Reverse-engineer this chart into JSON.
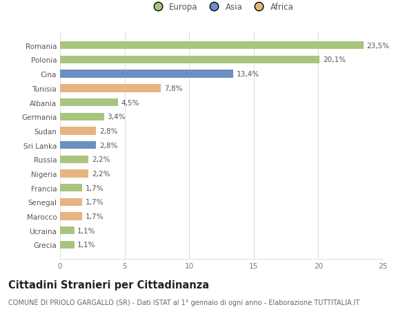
{
  "categories": [
    "Romania",
    "Polonia",
    "Cina",
    "Tunisia",
    "Albania",
    "Germania",
    "Sudan",
    "Sri Lanka",
    "Russia",
    "Nigeria",
    "Francia",
    "Senegal",
    "Marocco",
    "Ucraina",
    "Grecia"
  ],
  "values": [
    23.5,
    20.1,
    13.4,
    7.8,
    4.5,
    3.4,
    2.8,
    2.8,
    2.2,
    2.2,
    1.7,
    1.7,
    1.7,
    1.1,
    1.1
  ],
  "labels": [
    "23,5%",
    "20,1%",
    "13,4%",
    "7,8%",
    "4,5%",
    "3,4%",
    "2,8%",
    "2,8%",
    "2,2%",
    "2,2%",
    "1,7%",
    "1,7%",
    "1,7%",
    "1,1%",
    "1,1%"
  ],
  "continents": [
    "Europa",
    "Europa",
    "Asia",
    "Africa",
    "Europa",
    "Europa",
    "Africa",
    "Asia",
    "Europa",
    "Africa",
    "Europa",
    "Africa",
    "Africa",
    "Europa",
    "Europa"
  ],
  "colors": {
    "Europa": "#a8c47e",
    "Asia": "#6b8fc2",
    "Africa": "#e8b482"
  },
  "title": "Cittadini Stranieri per Cittadinanza",
  "subtitle": "COMUNE DI PRIOLO GARGALLO (SR) - Dati ISTAT al 1° gennaio di ogni anno - Elaborazione TUTTITALIA.IT",
  "xlim": [
    0,
    25
  ],
  "xticks": [
    0,
    5,
    10,
    15,
    20,
    25
  ],
  "background_color": "#ffffff",
  "grid_color": "#e0e0e0",
  "title_fontsize": 10.5,
  "subtitle_fontsize": 7,
  "label_fontsize": 7.5,
  "tick_fontsize": 7.5,
  "legend_fontsize": 8.5,
  "bar_height": 0.55
}
